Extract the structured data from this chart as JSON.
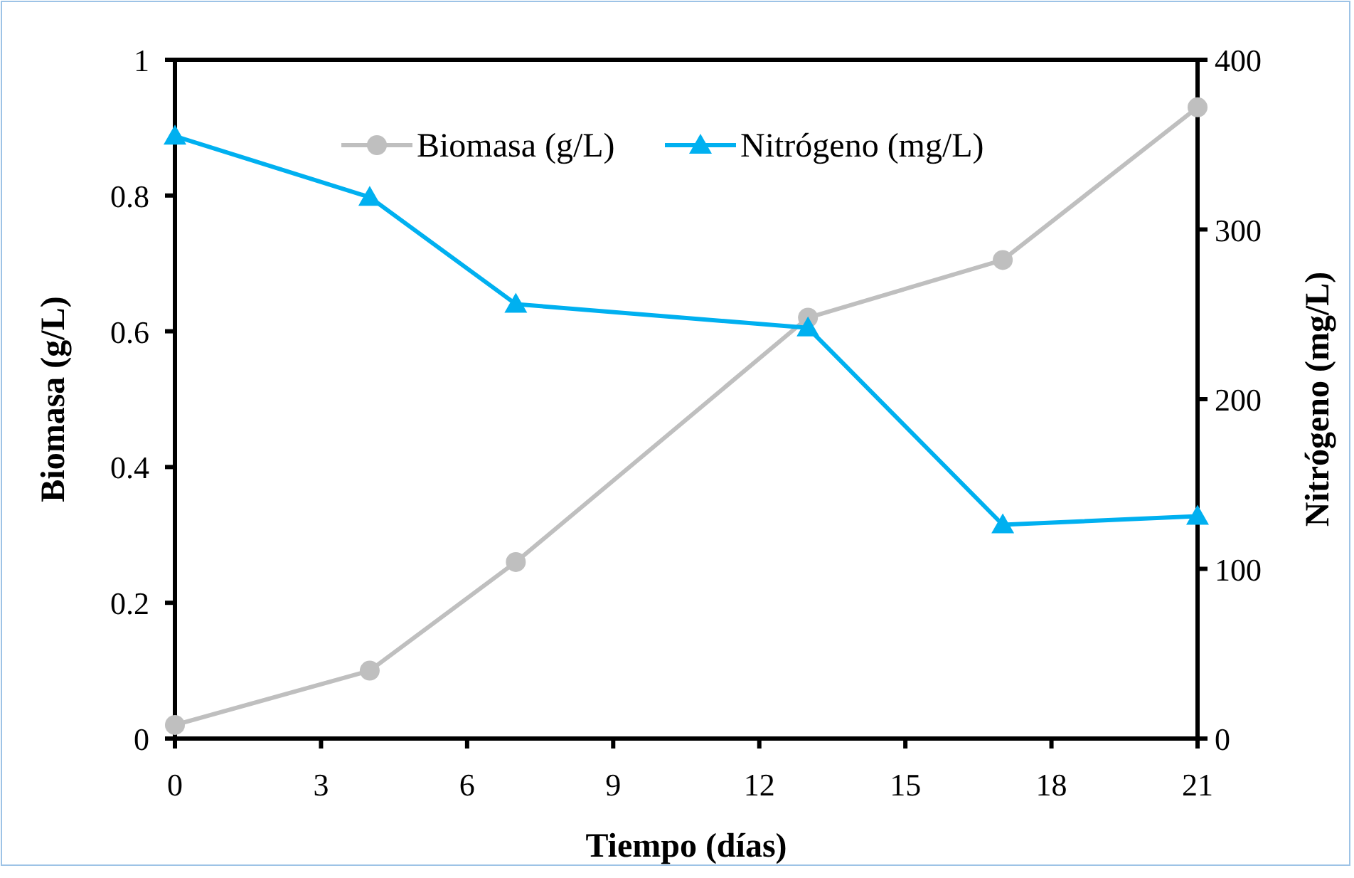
{
  "chart_data": {
    "type": "line",
    "xlabel": "Tiempo (días)",
    "ylabel": "Biomasa (g/L)",
    "y2label": "Nitrógeno (mg/L)",
    "x": [
      0,
      4,
      7,
      13,
      17,
      21
    ],
    "xlim": [
      0,
      21
    ],
    "xticks": [
      0,
      3,
      6,
      9,
      12,
      15,
      18,
      21
    ],
    "ylim": [
      0,
      1
    ],
    "yticks": [
      0,
      0.2,
      0.4,
      0.6,
      0.8,
      1
    ],
    "y2lim": [
      0,
      400
    ],
    "y2ticks": [
      0,
      100,
      200,
      300,
      400
    ],
    "legend": "top",
    "grid": false,
    "series": [
      {
        "name": "Biomasa (g/L)",
        "color": "#bfbfbf",
        "marker": "circle",
        "values": [
          0.02,
          0.1,
          0.26,
          0.62,
          0.705,
          0.93
        ]
      },
      {
        "name": "Nitrógeno (mg/L)",
        "color": "#00b0f0",
        "marker": "triangle",
        "axis": "y2",
        "values": [
          355,
          319,
          256,
          242,
          126,
          131
        ]
      }
    ]
  }
}
